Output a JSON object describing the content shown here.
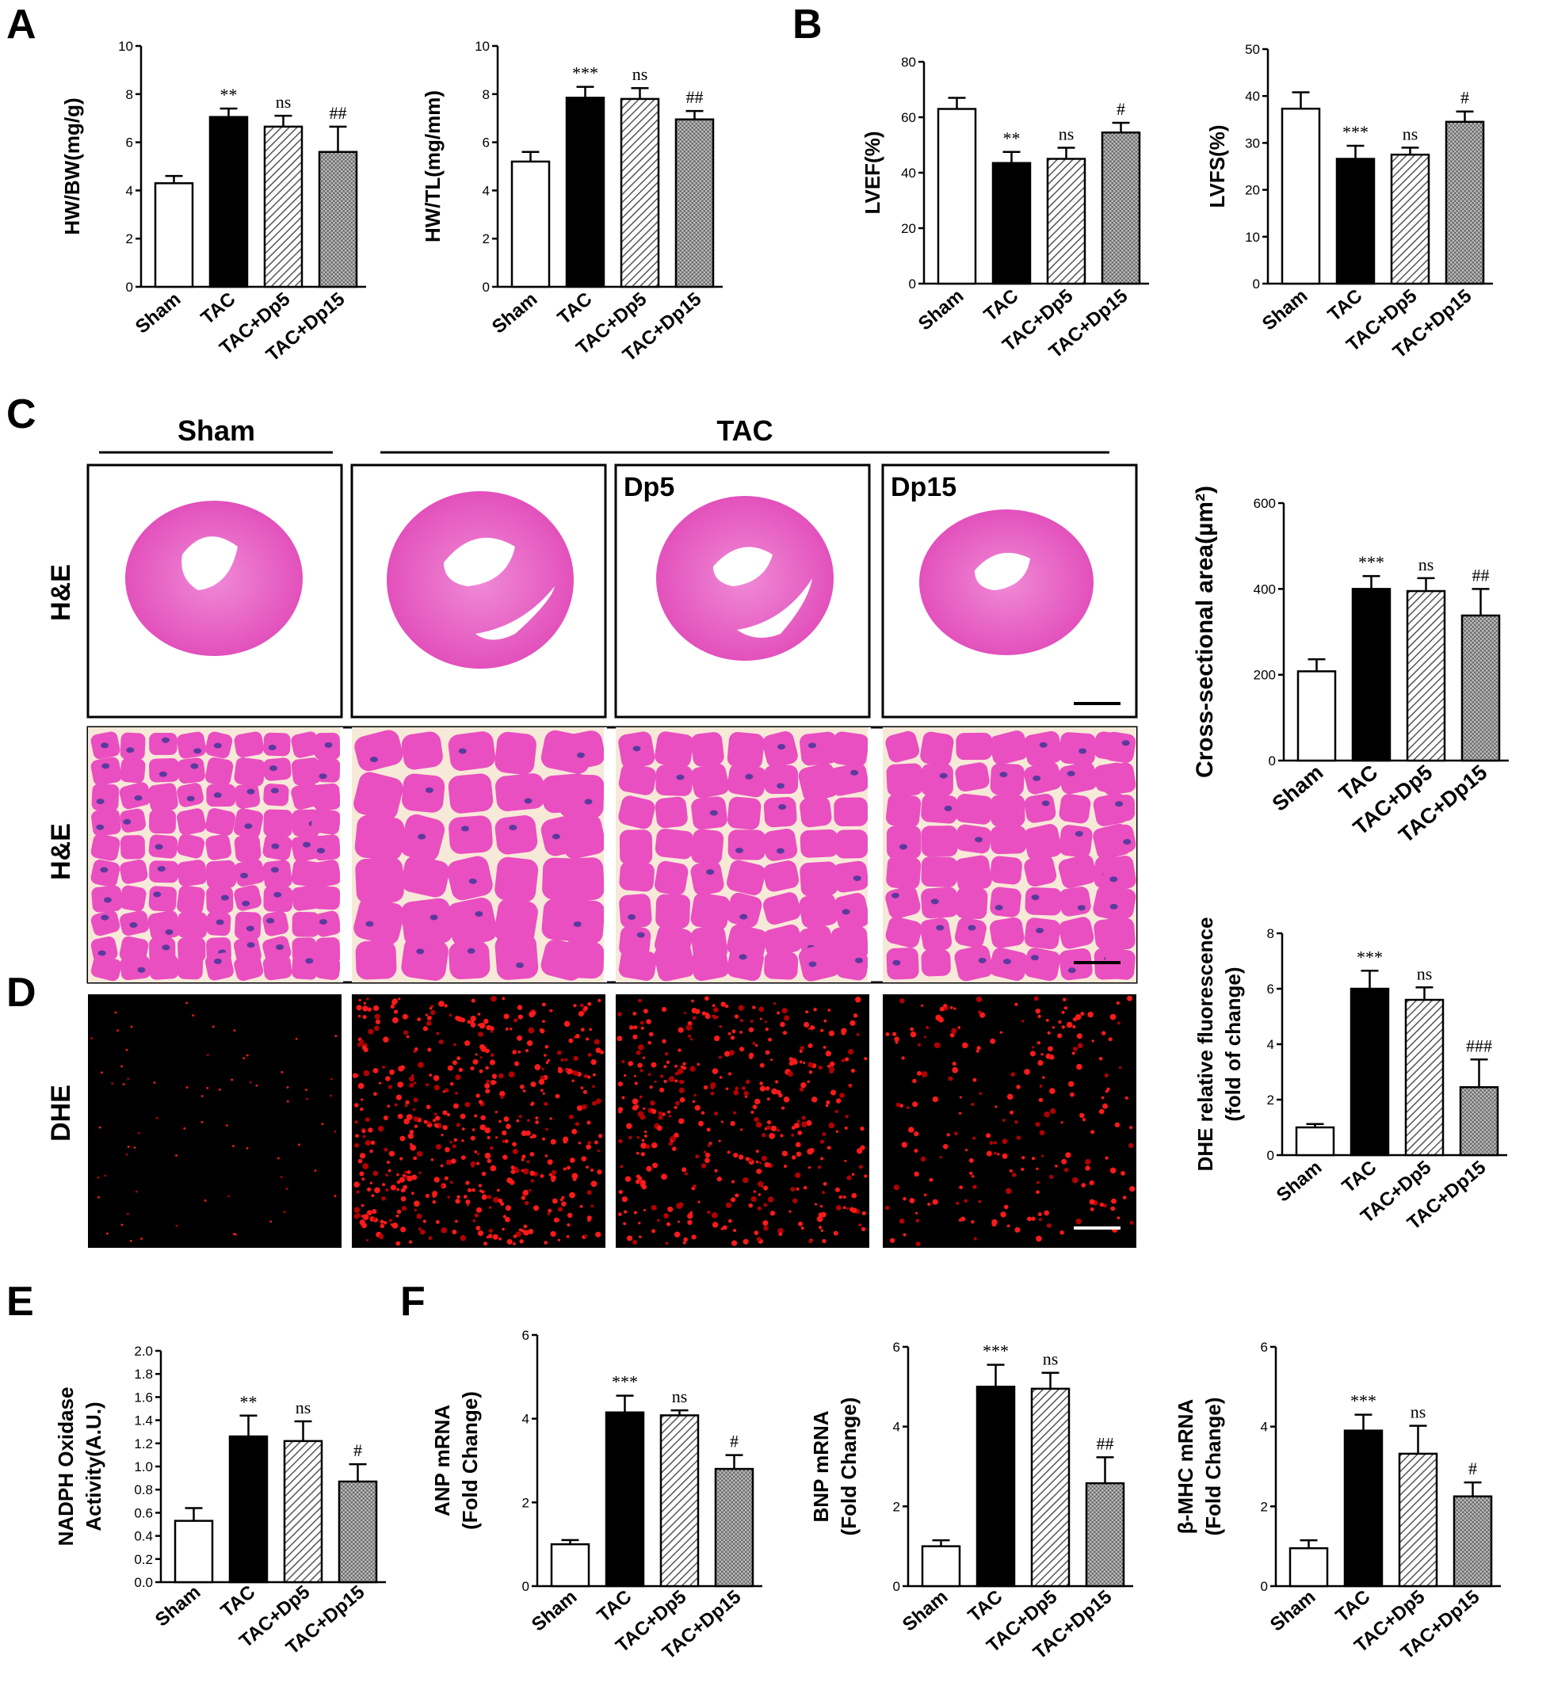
{
  "panels": {
    "A": "A",
    "B": "B",
    "C": "C",
    "D": "D",
    "E": "E",
    "F": "F"
  },
  "histology": {
    "group_sham": "Sham",
    "group_tac": "TAC",
    "sub_dp5": "Dp5",
    "sub_dp15": "Dp15",
    "row_he_1": "H&E",
    "row_he_2": "H&E",
    "row_dhe": "DHE"
  },
  "colors": {
    "bar_sham": "#ffffff",
    "bar_tac": "#000000",
    "bar_dp5": "hatch",
    "bar_dp15": "crosshatch",
    "tissue_pink": "#e94fc0",
    "nuclei": "#5a3a9e",
    "dhe_signal": "#ff1a1a"
  },
  "chart_data": [
    {
      "id": "hwbw",
      "type": "bar",
      "categories": [
        "Sham",
        "TAC",
        "TAC+Dp5",
        "TAC+Dp15"
      ],
      "values": [
        4.3,
        7.05,
        6.65,
        5.6
      ],
      "errors": [
        0.3,
        0.35,
        0.45,
        1.05
      ],
      "significance": [
        "",
        "**",
        "ns",
        "##"
      ],
      "ylabel": "HW/BW(mg/g)",
      "ylim": [
        0,
        10
      ],
      "ticks": [
        "0",
        "2",
        "4",
        "6",
        "8",
        "10"
      ]
    },
    {
      "id": "hwtl",
      "type": "bar",
      "categories": [
        "Sham",
        "TAC",
        "TAC+Dp5",
        "TAC+Dp15"
      ],
      "values": [
        5.2,
        7.85,
        7.8,
        6.95
      ],
      "errors": [
        0.4,
        0.45,
        0.45,
        0.35
      ],
      "significance": [
        "",
        "***",
        "ns",
        "##"
      ],
      "ylabel": "HW/TL(mg/mm)",
      "ylim": [
        0,
        10
      ],
      "ticks": [
        "0",
        "2",
        "4",
        "6",
        "8",
        "10"
      ]
    },
    {
      "id": "lvef",
      "type": "bar",
      "categories": [
        "Sham",
        "TAC",
        "TAC+Dp5",
        "TAC+Dp15"
      ],
      "values": [
        63,
        43.5,
        45,
        54.5
      ],
      "errors": [
        4,
        4,
        4,
        3.5
      ],
      "significance": [
        "",
        "**",
        "ns",
        "#"
      ],
      "ylabel": "LVEF(%)",
      "ylim": [
        0,
        80
      ],
      "ticks": [
        "0",
        "20",
        "40",
        "60",
        "80"
      ]
    },
    {
      "id": "lvfs",
      "type": "bar",
      "categories": [
        "Sham",
        "TAC",
        "TAC+Dp5",
        "TAC+Dp15"
      ],
      "values": [
        37.3,
        26.6,
        27.5,
        34.5
      ],
      "errors": [
        3.5,
        2.8,
        1.5,
        2.2
      ],
      "significance": [
        "",
        "***",
        "ns",
        "#"
      ],
      "ylabel": "LVFS(%)",
      "ylim": [
        0,
        50
      ],
      "ticks": [
        "0",
        "10",
        "20",
        "30",
        "40",
        "50"
      ]
    },
    {
      "id": "csa",
      "type": "bar",
      "categories": [
        "Sham",
        "TAC",
        "TAC+Dp5",
        "TAC+Dp15"
      ],
      "values": [
        208,
        400,
        395,
        338
      ],
      "errors": [
        28,
        30,
        30,
        62
      ],
      "significance": [
        "",
        "***",
        "ns",
        "##"
      ],
      "ylabel": "Cross-sectional  area(µm²)",
      "ylim": [
        0,
        600
      ],
      "ticks": [
        "0",
        "200",
        "400",
        "600"
      ]
    },
    {
      "id": "dhe",
      "type": "bar",
      "categories": [
        "Sham",
        "TAC",
        "TAC+Dp5",
        "TAC+Dp15"
      ],
      "values": [
        1.0,
        6.0,
        5.6,
        2.45
      ],
      "errors": [
        0.12,
        0.65,
        0.45,
        1.0
      ],
      "significance": [
        "",
        "***",
        "ns",
        "###"
      ],
      "ylabel": "DHE relative fluorescence",
      "ylabel2": "(fold of change)",
      "ylim": [
        0,
        8
      ],
      "ticks": [
        "0",
        "2",
        "4",
        "6",
        "8"
      ]
    },
    {
      "id": "nadph",
      "type": "bar",
      "categories": [
        "Sham",
        "TAC",
        "TAC+Dp5",
        "TAC+Dp15"
      ],
      "values": [
        0.53,
        1.26,
        1.22,
        0.87
      ],
      "errors": [
        0.11,
        0.18,
        0.17,
        0.15
      ],
      "significance": [
        "",
        "**",
        "ns",
        "#"
      ],
      "ylabel": "NADPH Oxidase",
      "ylabel2": "Activity(A.U.)",
      "ylim": [
        0,
        2.0
      ],
      "ticks": [
        "0.0",
        "0.2",
        "0.4",
        "0.6",
        "0.8",
        "1.0",
        "1.2",
        "1.4",
        "1.6",
        "1.8",
        "2.0"
      ]
    },
    {
      "id": "anp",
      "type": "bar",
      "categories": [
        "Sham",
        "TAC",
        "TAC+Dp5",
        "TAC+Dp15"
      ],
      "values": [
        1.0,
        4.15,
        4.08,
        2.8
      ],
      "errors": [
        0.1,
        0.4,
        0.12,
        0.33
      ],
      "significance": [
        "",
        "***",
        "ns",
        "#"
      ],
      "ylabel": "ANP mRNA",
      "ylabel2": "(Fold Change)",
      "ylim": [
        0,
        6
      ],
      "ticks": [
        "0",
        "2",
        "4",
        "6"
      ]
    },
    {
      "id": "bnp",
      "type": "bar",
      "categories": [
        "Sham",
        "TAC",
        "TAC+Dp5",
        "TAC+Dp15"
      ],
      "values": [
        1.0,
        5.0,
        4.95,
        2.58
      ],
      "errors": [
        0.15,
        0.55,
        0.4,
        0.65
      ],
      "significance": [
        "",
        "***",
        "ns",
        "##"
      ],
      "ylabel": "BNP mRNA",
      "ylabel2": "(Fold Change)",
      "ylim": [
        0,
        6
      ],
      "ticks": [
        "0",
        "2",
        "4",
        "6"
      ]
    },
    {
      "id": "bmhc",
      "type": "bar",
      "categories": [
        "Sham",
        "TAC",
        "TAC+Dp5",
        "TAC+Dp15"
      ],
      "values": [
        0.95,
        3.9,
        3.32,
        2.25
      ],
      "errors": [
        0.2,
        0.4,
        0.7,
        0.35
      ],
      "significance": [
        "",
        "***",
        "ns",
        "#"
      ],
      "ylabel": "β-MHC mRNA",
      "ylabel2": "(Fold Change)",
      "ylim": [
        0,
        6
      ],
      "ticks": [
        "0",
        "2",
        "4",
        "6"
      ]
    }
  ]
}
